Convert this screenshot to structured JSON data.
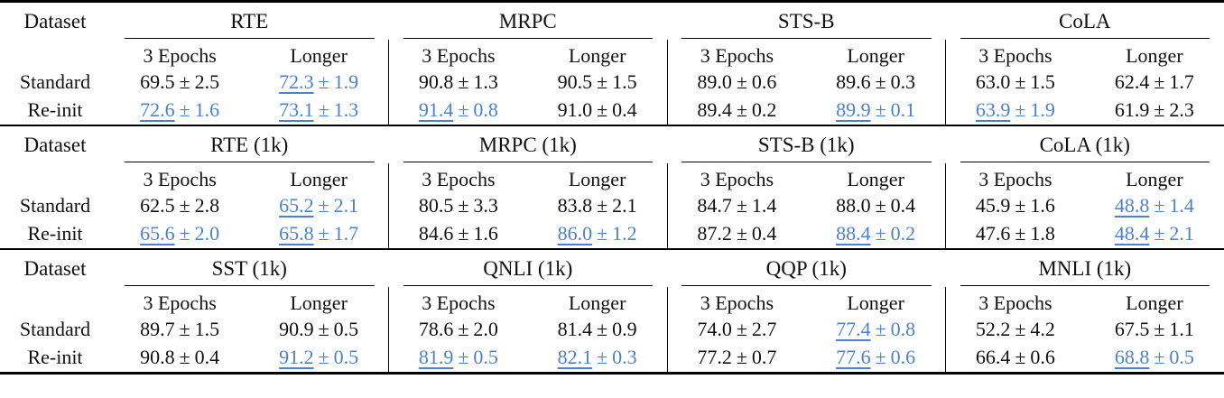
{
  "colors": {
    "highlight": "#4a82d0",
    "text": "#111111",
    "rule": "#000000"
  },
  "labels": {
    "dataset": "Dataset",
    "epochs3": "3 Epochs",
    "longer": "Longer",
    "standard": "Standard",
    "reinit": "Re-init",
    "plusminus": "±"
  },
  "sections": [
    {
      "groups": [
        {
          "name": "RTE",
          "standard": [
            {
              "value": "69.5",
              "err": "2.5",
              "highlight": false
            },
            {
              "value": "72.3",
              "err": "1.9",
              "highlight": true
            }
          ],
          "reinit": [
            {
              "value": "72.6",
              "err": "1.6",
              "highlight": true
            },
            {
              "value": "73.1",
              "err": "1.3",
              "highlight": true
            }
          ]
        },
        {
          "name": "MRPC",
          "standard": [
            {
              "value": "90.8",
              "err": "1.3",
              "highlight": false
            },
            {
              "value": "90.5",
              "err": "1.5",
              "highlight": false
            }
          ],
          "reinit": [
            {
              "value": "91.4",
              "err": "0.8",
              "highlight": true
            },
            {
              "value": "91.0",
              "err": "0.4",
              "highlight": false
            }
          ]
        },
        {
          "name": "STS-B",
          "standard": [
            {
              "value": "89.0",
              "err": "0.6",
              "highlight": false
            },
            {
              "value": "89.6",
              "err": "0.3",
              "highlight": false
            }
          ],
          "reinit": [
            {
              "value": "89.4",
              "err": "0.2",
              "highlight": false
            },
            {
              "value": "89.9",
              "err": "0.1",
              "highlight": true
            }
          ]
        },
        {
          "name": "CoLA",
          "standard": [
            {
              "value": "63.0",
              "err": "1.5",
              "highlight": false
            },
            {
              "value": "62.4",
              "err": "1.7",
              "highlight": false
            }
          ],
          "reinit": [
            {
              "value": "63.9",
              "err": "1.9",
              "highlight": true
            },
            {
              "value": "61.9",
              "err": "2.3",
              "highlight": false
            }
          ]
        }
      ]
    },
    {
      "groups": [
        {
          "name": "RTE (1k)",
          "standard": [
            {
              "value": "62.5",
              "err": "2.8",
              "highlight": false
            },
            {
              "value": "65.2",
              "err": "2.1",
              "highlight": true
            }
          ],
          "reinit": [
            {
              "value": "65.6",
              "err": "2.0",
              "highlight": true
            },
            {
              "value": "65.8",
              "err": "1.7",
              "highlight": true
            }
          ]
        },
        {
          "name": "MRPC (1k)",
          "standard": [
            {
              "value": "80.5",
              "err": "3.3",
              "highlight": false
            },
            {
              "value": "83.8",
              "err": "2.1",
              "highlight": false
            }
          ],
          "reinit": [
            {
              "value": "84.6",
              "err": "1.6",
              "highlight": false
            },
            {
              "value": "86.0",
              "err": "1.2",
              "highlight": true
            }
          ]
        },
        {
          "name": "STS-B (1k)",
          "standard": [
            {
              "value": "84.7",
              "err": "1.4",
              "highlight": false
            },
            {
              "value": "88.0",
              "err": "0.4",
              "highlight": false
            }
          ],
          "reinit": [
            {
              "value": "87.2",
              "err": "0.4",
              "highlight": false
            },
            {
              "value": "88.4",
              "err": "0.2",
              "highlight": true
            }
          ]
        },
        {
          "name": "CoLA (1k)",
          "standard": [
            {
              "value": "45.9",
              "err": "1.6",
              "highlight": false
            },
            {
              "value": "48.8",
              "err": "1.4",
              "highlight": true
            }
          ],
          "reinit": [
            {
              "value": "47.6",
              "err": "1.8",
              "highlight": false
            },
            {
              "value": "48.4",
              "err": "2.1",
              "highlight": true
            }
          ]
        }
      ]
    },
    {
      "groups": [
        {
          "name": "SST (1k)",
          "standard": [
            {
              "value": "89.7",
              "err": "1.5",
              "highlight": false
            },
            {
              "value": "90.9",
              "err": "0.5",
              "highlight": false
            }
          ],
          "reinit": [
            {
              "value": "90.8",
              "err": "0.4",
              "highlight": false
            },
            {
              "value": "91.2",
              "err": "0.5",
              "highlight": true
            }
          ]
        },
        {
          "name": "QNLI (1k)",
          "standard": [
            {
              "value": "78.6",
              "err": "2.0",
              "highlight": false
            },
            {
              "value": "81.4",
              "err": "0.9",
              "highlight": false
            }
          ],
          "reinit": [
            {
              "value": "81.9",
              "err": "0.5",
              "highlight": true
            },
            {
              "value": "82.1",
              "err": "0.3",
              "highlight": true
            }
          ]
        },
        {
          "name": "QQP (1k)",
          "standard": [
            {
              "value": "74.0",
              "err": "2.7",
              "highlight": false
            },
            {
              "value": "77.4",
              "err": "0.8",
              "highlight": true
            }
          ],
          "reinit": [
            {
              "value": "77.2",
              "err": "0.7",
              "highlight": false
            },
            {
              "value": "77.6",
              "err": "0.6",
              "highlight": true
            }
          ]
        },
        {
          "name": "MNLI (1k)",
          "standard": [
            {
              "value": "52.2",
              "err": "4.2",
              "highlight": false
            },
            {
              "value": "67.5",
              "err": "1.1",
              "highlight": false
            }
          ],
          "reinit": [
            {
              "value": "66.4",
              "err": "0.6",
              "highlight": false
            },
            {
              "value": "68.8",
              "err": "0.5",
              "highlight": true
            }
          ]
        }
      ]
    }
  ]
}
